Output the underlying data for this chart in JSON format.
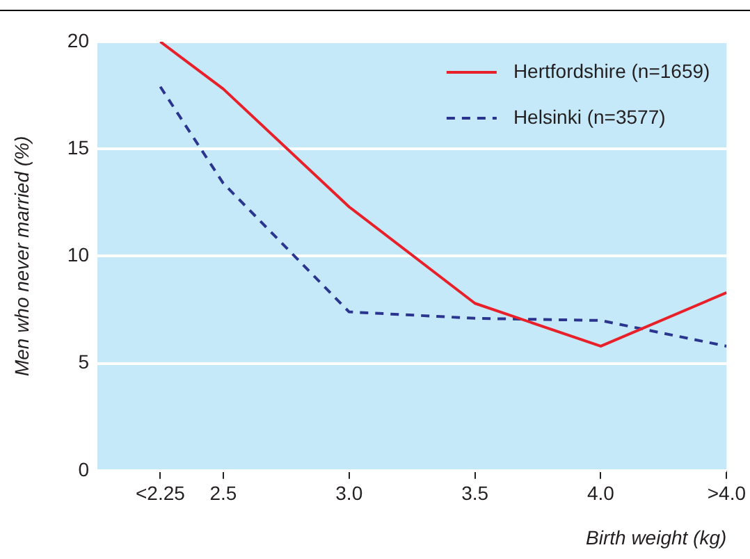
{
  "chart_data": {
    "type": "line",
    "xlabel": "Birth weight (kg)",
    "ylabel": "Men who never married (%)",
    "x": [
      2.25,
      2.5,
      3.0,
      3.5,
      4.0,
      4.5
    ],
    "xlim": [
      2.0,
      4.5
    ],
    "xticks": [
      {
        "value": 2.25,
        "label": "<2.25"
      },
      2.5,
      {
        "value": 3.0,
        "label": "3.0"
      },
      3.5,
      {
        "value": 4.0,
        "label": "4.0"
      },
      {
        "value": 4.5,
        "label": ">4.0"
      }
    ],
    "ylim": [
      0,
      20
    ],
    "yticks": [
      0,
      5,
      10,
      15,
      20
    ],
    "series": [
      {
        "name": "Hertfordshire (n=1659)",
        "color": "#e8202a",
        "values": [
          20,
          17.8,
          12.3,
          7.8,
          5.8,
          8.3
        ],
        "line_style": "solid"
      },
      {
        "name": "Helsinki (n=3577)",
        "color": "#2a3590",
        "values": [
          17.9,
          13.4,
          7.4,
          7.1,
          7.0,
          5.8
        ],
        "line_style": "dashed"
      }
    ],
    "grid": "y",
    "legend": "top right",
    "marker": "none"
  }
}
